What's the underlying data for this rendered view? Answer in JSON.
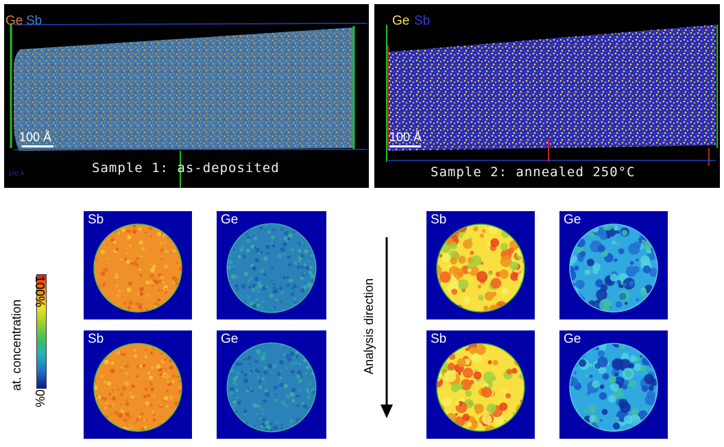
{
  "top_panels": [
    {
      "legend": [
        {
          "text": "Ge",
          "color": "#d2843a"
        },
        {
          "text": "Sb",
          "color": "#3f80c8"
        }
      ],
      "scale_bar": "100 Å",
      "tiny_label": "100 Å",
      "caption": "Sample 1: as-deposited"
    },
    {
      "legend": [
        {
          "text": "Ge",
          "color": "#f2e24a"
        },
        {
          "text": "Sb",
          "color": "#3a3ad8"
        }
      ],
      "scale_bar": "100 Å",
      "caption": "Sample 2: annealed 250°C"
    }
  ],
  "colorbar": {
    "label": "at. concentration",
    "max_label": "100%",
    "min_label": "0%",
    "colors": [
      "#0a1a8c",
      "#1f6fc4",
      "#22b0c0",
      "#3cc060",
      "#9ad030",
      "#f0e020",
      "#f08a18",
      "#e02010"
    ]
  },
  "analysis_direction": "Analysis direction",
  "maps": [
    {
      "label": "Sb",
      "sample": 1,
      "row": 1
    },
    {
      "label": "Ge",
      "sample": 1,
      "row": 1
    },
    {
      "label": "Sb",
      "sample": 1,
      "row": 2
    },
    {
      "label": "Ge",
      "sample": 1,
      "row": 2
    },
    {
      "label": "Sb",
      "sample": 2,
      "row": 1
    },
    {
      "label": "Ge",
      "sample": 2,
      "row": 1
    },
    {
      "label": "Sb",
      "sample": 2,
      "row": 2
    },
    {
      "label": "Ge",
      "sample": 2,
      "row": 2
    }
  ]
}
